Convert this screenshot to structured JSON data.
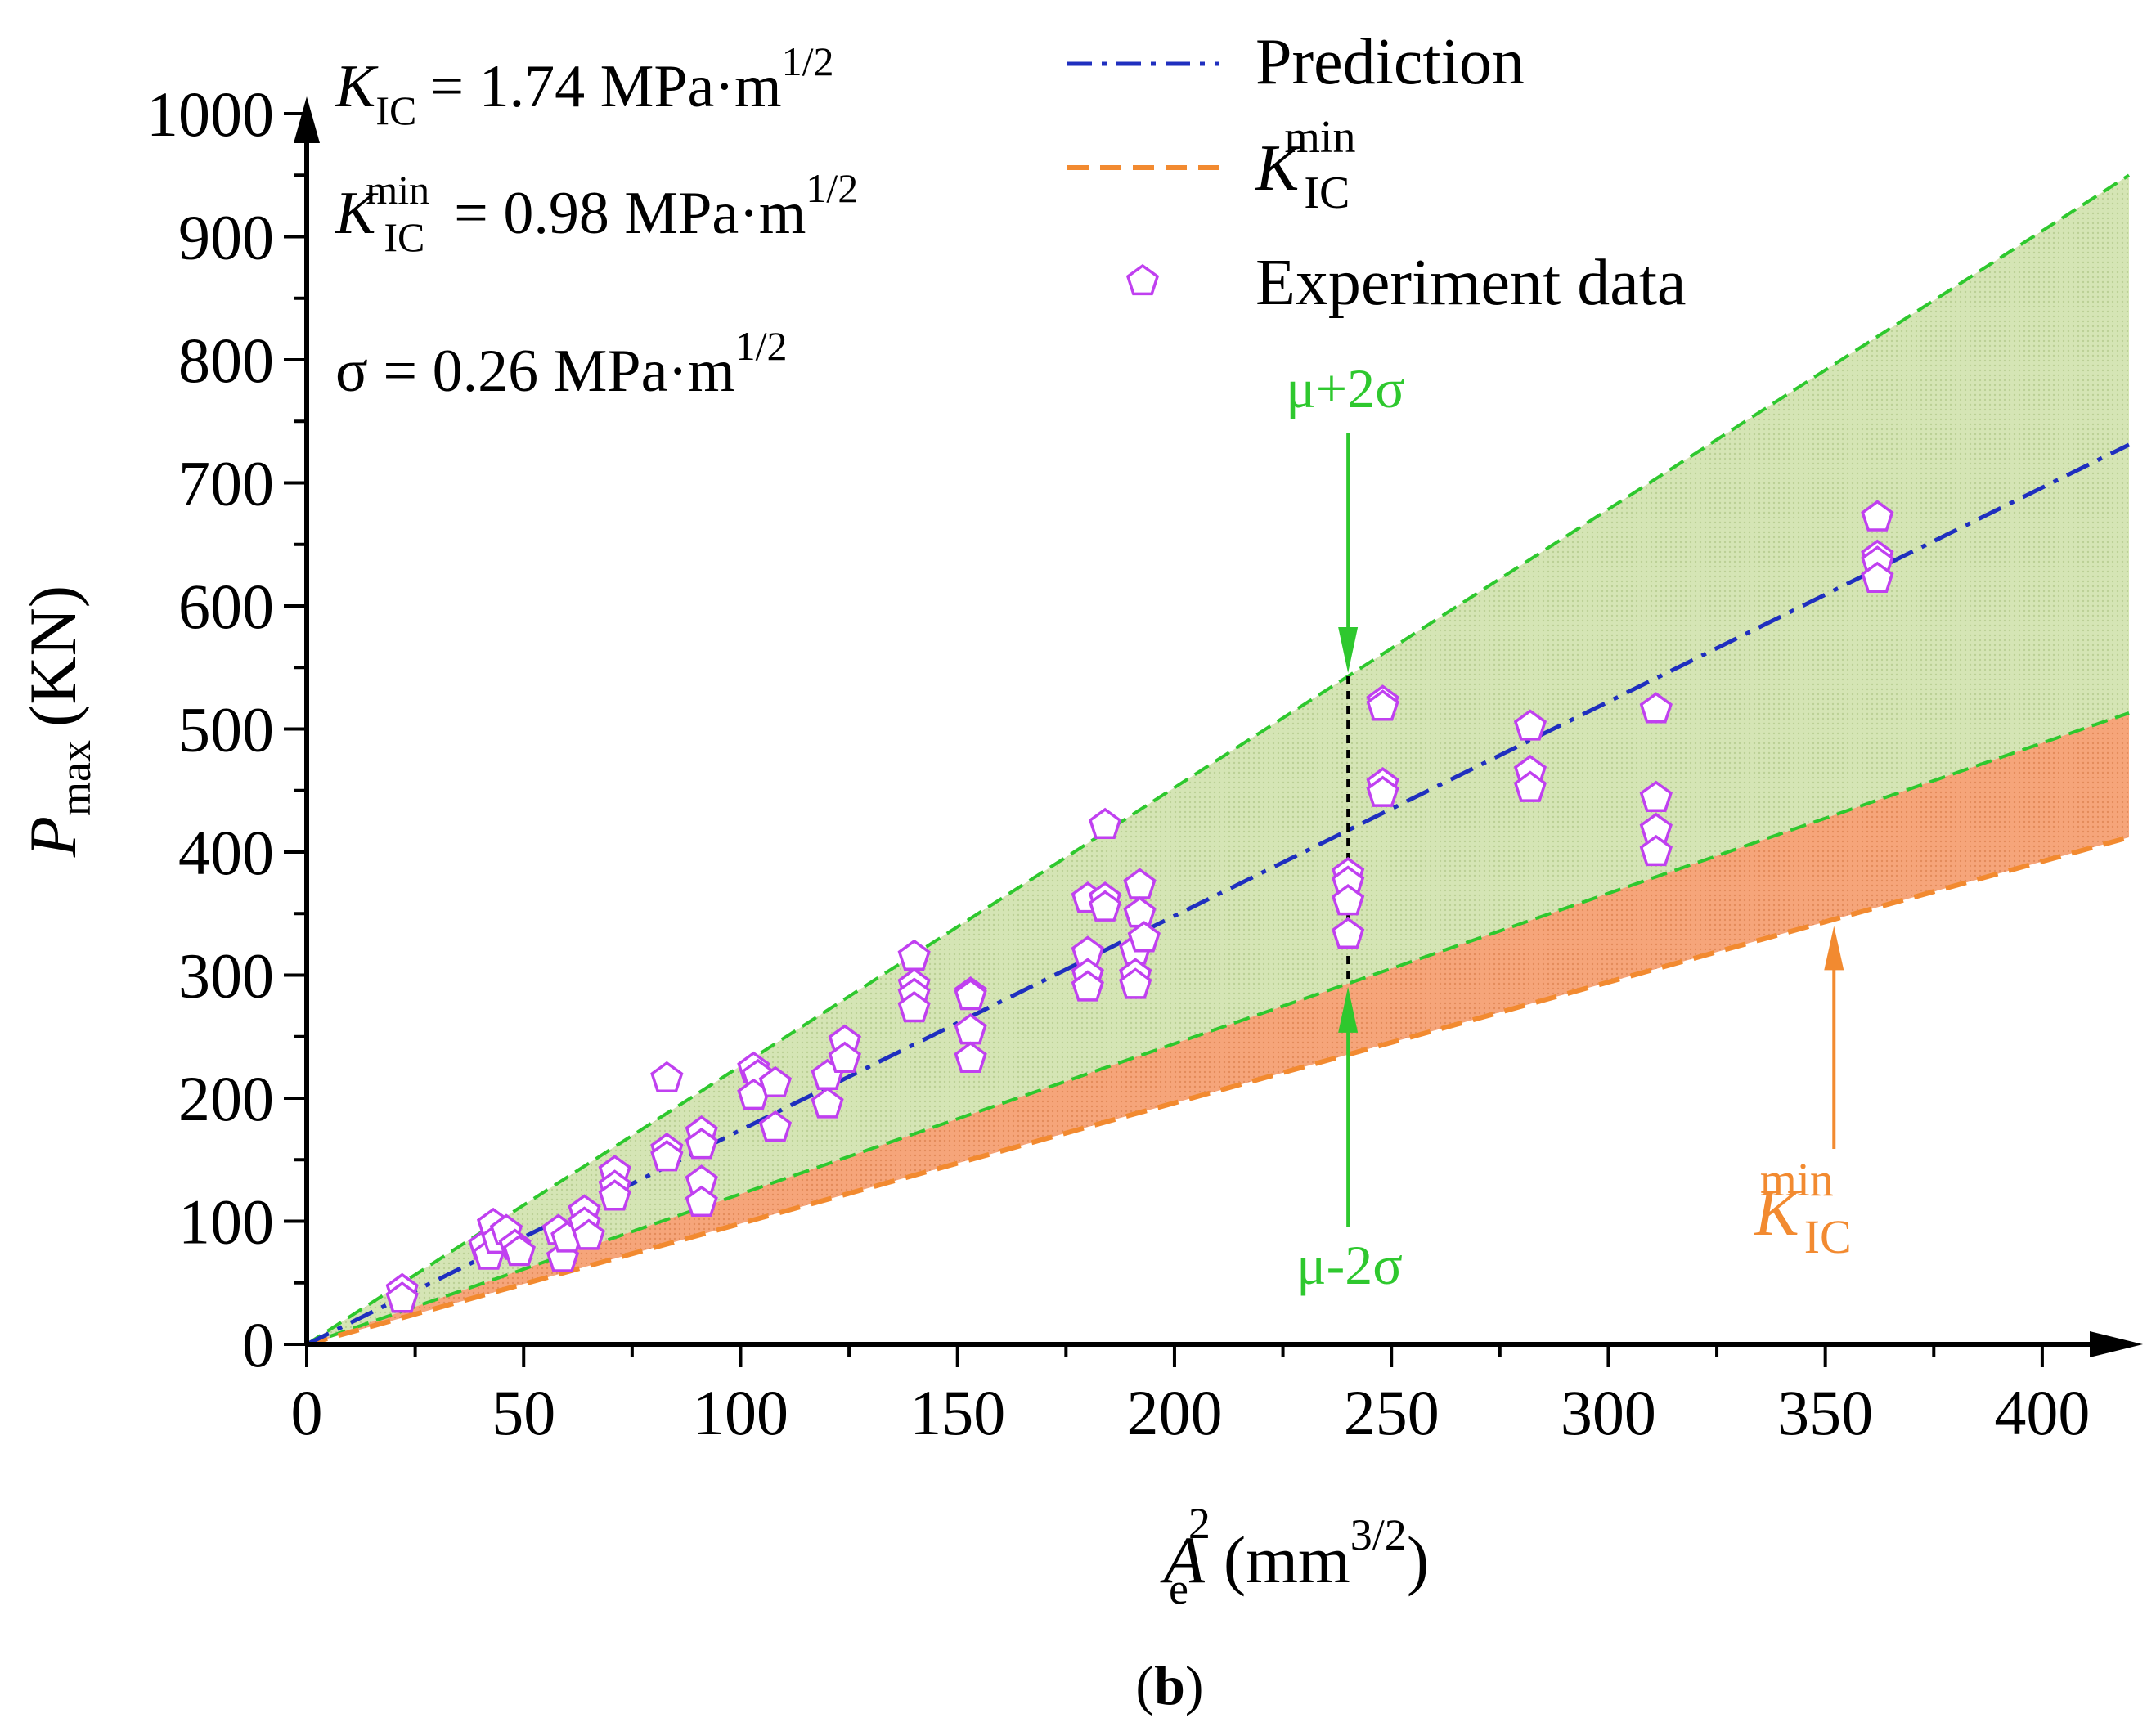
{
  "chart_data": {
    "type": "scatter",
    "panel_label": {
      "open": "(",
      "letter": "b",
      "close": ")"
    },
    "xlabel": {
      "main": "A",
      "sub": "e",
      "sup": "2",
      "unit_open": "(mm",
      "unit_sup": "3/2",
      "unit_close": ")"
    },
    "ylabel": {
      "main": "P",
      "sub": "max",
      "unit": "(KN)"
    },
    "xlim": [
      0,
      420
    ],
    "ylim": [
      0,
      1000
    ],
    "x_ticks": [
      0,
      50,
      100,
      150,
      200,
      250,
      300,
      350,
      400
    ],
    "y_ticks": [
      0,
      100,
      200,
      300,
      400,
      500,
      600,
      700,
      800,
      900,
      1000
    ],
    "x_minor_step": 25,
    "y_minor_step": 50,
    "annotations": {
      "kic": {
        "main": "K",
        "sub": "IC",
        "eq": "= 1.74 MPa·m",
        "sup": "1/2"
      },
      "kicmin": {
        "main": "K",
        "sub": "IC",
        "sup_min": "min",
        "eq": "= 0.98 MPa·m",
        "sup": "1/2"
      },
      "sigma": {
        "text": "σ = 0.26 MPa·m",
        "sup": "1/2"
      },
      "upper_label": "μ+2σ",
      "lower_label": "μ-2σ",
      "kicmin_label": {
        "main": "K",
        "sub": "IC",
        "sup": "min"
      },
      "marker_x": 240,
      "kicmin_arrow_x": 352
    },
    "legend": {
      "position": "top-right",
      "items": [
        {
          "label": "Prediction",
          "style": "dash-dot",
          "color": "#1f2fbf"
        },
        {
          "label_main": "K",
          "label_sub": "IC",
          "label_sup": "min",
          "style": "dashed",
          "color": "#f28a30"
        },
        {
          "label": "Experiment data",
          "style": "pentagon",
          "color": "#c040f0"
        }
      ]
    },
    "series": [
      {
        "name": "Prediction",
        "type": "line",
        "color": "#1f2fbf",
        "x": [
          0,
          420
        ],
        "y": [
          0,
          731
        ]
      },
      {
        "name": "μ+2σ",
        "type": "line",
        "color": "#2ec82e",
        "x": [
          0,
          420
        ],
        "y": [
          0,
          950
        ]
      },
      {
        "name": "μ-2σ",
        "type": "line",
        "color": "#2ec82e",
        "x": [
          0,
          420
        ],
        "y": [
          0,
          513
        ]
      },
      {
        "name": "K_IC^min",
        "type": "line",
        "color": "#f28a30",
        "x": [
          0,
          420
        ],
        "y": [
          0,
          412
        ]
      },
      {
        "name": "Experiment data",
        "type": "scatter",
        "color": "#c040f0",
        "points": [
          [
            22,
            44
          ],
          [
            22,
            37
          ],
          [
            41,
            80
          ],
          [
            42,
            72
          ],
          [
            43,
            97
          ],
          [
            44,
            85
          ],
          [
            46,
            92
          ],
          [
            48,
            80
          ],
          [
            49,
            75
          ],
          [
            58,
            92
          ],
          [
            59,
            70
          ],
          [
            60,
            86
          ],
          [
            64,
            108
          ],
          [
            64,
            98
          ],
          [
            65,
            88
          ],
          [
            71,
            140
          ],
          [
            71,
            128
          ],
          [
            71,
            120
          ],
          [
            83,
            216
          ],
          [
            83,
            158
          ],
          [
            83,
            152
          ],
          [
            91,
            172
          ],
          [
            91,
            162
          ],
          [
            91,
            132
          ],
          [
            91,
            115
          ],
          [
            103,
            224
          ],
          [
            104,
            218
          ],
          [
            103,
            202
          ],
          [
            108,
            212
          ],
          [
            108,
            176
          ],
          [
            120,
            218
          ],
          [
            120,
            195
          ],
          [
            124,
            246
          ],
          [
            124,
            232
          ],
          [
            140,
            315
          ],
          [
            140,
            292
          ],
          [
            140,
            284
          ],
          [
            140,
            273
          ],
          [
            153,
            285
          ],
          [
            153,
            283
          ],
          [
            153,
            255
          ],
          [
            153,
            232
          ],
          [
            180,
            362
          ],
          [
            180,
            318
          ],
          [
            180,
            300
          ],
          [
            180,
            290
          ],
          [
            184,
            422
          ],
          [
            184,
            362
          ],
          [
            184,
            355
          ],
          [
            191,
            320
          ],
          [
            191,
            300
          ],
          [
            191,
            292
          ],
          [
            192,
            373
          ],
          [
            192,
            350
          ],
          [
            193,
            330
          ],
          [
            240,
            382
          ],
          [
            240,
            375
          ],
          [
            240,
            360
          ],
          [
            240,
            333
          ],
          [
            248,
            522
          ],
          [
            248,
            518
          ],
          [
            248,
            455
          ],
          [
            248,
            448
          ],
          [
            282,
            502
          ],
          [
            282,
            465
          ],
          [
            282,
            452
          ],
          [
            311,
            516
          ],
          [
            311,
            444
          ],
          [
            311,
            418
          ],
          [
            311,
            400
          ],
          [
            362,
            672
          ],
          [
            362,
            640
          ],
          [
            362,
            635
          ],
          [
            362,
            622
          ]
        ]
      }
    ]
  }
}
